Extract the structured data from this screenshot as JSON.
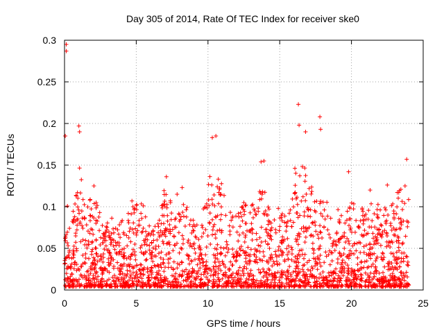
{
  "chart_data": {
    "type": "scatter",
    "title": "Day 305 of 2014, Rate Of TEC Index for receiver ske0",
    "xlabel": "GPS time / hours",
    "ylabel": "ROTI / TECUs",
    "xlim": [
      0,
      25
    ],
    "ylim": [
      0,
      0.3
    ],
    "xticks": [
      0,
      5,
      10,
      15,
      20,
      25
    ],
    "yticks": [
      0,
      0.05,
      0.1,
      0.15,
      0.2,
      0.25,
      0.3
    ],
    "xtick_labels": [
      "0",
      "5",
      "10",
      "15",
      "20",
      "25"
    ],
    "ytick_labels": [
      "0",
      "0.05",
      "0.1",
      "0.15",
      "0.2",
      "0.25",
      "0.3"
    ],
    "grid": true,
    "marker": "+",
    "color": "#ff0000",
    "x_data_range": [
      0.0,
      24.0
    ],
    "notable_points": [
      {
        "x": 0.12,
        "y": 0.295
      },
      {
        "x": 0.12,
        "y": 0.287
      },
      {
        "x": 0.05,
        "y": 0.185
      },
      {
        "x": 1.0,
        "y": 0.197
      },
      {
        "x": 1.05,
        "y": 0.19
      },
      {
        "x": 10.3,
        "y": 0.183
      },
      {
        "x": 10.55,
        "y": 0.185
      },
      {
        "x": 16.3,
        "y": 0.223
      },
      {
        "x": 16.35,
        "y": 0.198
      },
      {
        "x": 16.8,
        "y": 0.19
      },
      {
        "x": 17.8,
        "y": 0.208
      },
      {
        "x": 17.85,
        "y": 0.193
      },
      {
        "x": 13.7,
        "y": 0.154
      },
      {
        "x": 13.9,
        "y": 0.155
      },
      {
        "x": 23.85,
        "y": 0.157
      },
      {
        "x": 7.1,
        "y": 0.136
      },
      {
        "x": 19.8,
        "y": 0.142
      },
      {
        "x": 2.05,
        "y": 0.125
      },
      {
        "x": 5.5,
        "y": 0.101
      },
      {
        "x": 4.7,
        "y": 0.107
      },
      {
        "x": 8.2,
        "y": 0.123
      },
      {
        "x": 12.5,
        "y": 0.105
      },
      {
        "x": 14.9,
        "y": 0.098
      },
      {
        "x": 21.3,
        "y": 0.12
      },
      {
        "x": 22.5,
        "y": 0.126
      }
    ],
    "envelope": {
      "description": "approximate upper extent of the dense point cloud per hour",
      "x": [
        0,
        0.5,
        1,
        1.5,
        2,
        2.5,
        3,
        3.5,
        4,
        4.5,
        5,
        5.5,
        6,
        6.5,
        7,
        7.5,
        8,
        8.5,
        9,
        9.5,
        10,
        10.5,
        11,
        11.5,
        12,
        12.5,
        13,
        13.5,
        14,
        14.5,
        15,
        15.5,
        16,
        16.5,
        17,
        17.5,
        18,
        18.5,
        19,
        19.5,
        20,
        20.5,
        21,
        21.5,
        22,
        22.5,
        23,
        23.5,
        24
      ],
      "y": [
        0.15,
        0.1,
        0.15,
        0.1,
        0.12,
        0.09,
        0.08,
        0.085,
        0.08,
        0.09,
        0.105,
        0.1,
        0.07,
        0.075,
        0.125,
        0.11,
        0.12,
        0.1,
        0.085,
        0.075,
        0.14,
        0.13,
        0.13,
        0.1,
        0.085,
        0.1,
        0.095,
        0.12,
        0.12,
        0.08,
        0.09,
        0.085,
        0.14,
        0.16,
        0.14,
        0.1,
        0.12,
        0.09,
        0.095,
        0.08,
        0.11,
        0.09,
        0.1,
        0.1,
        0.1,
        0.11,
        0.1,
        0.14,
        0.12
      ]
    }
  }
}
